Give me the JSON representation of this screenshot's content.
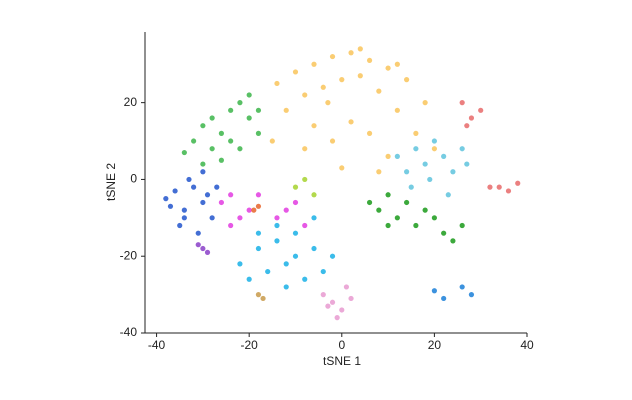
{
  "chart_data": {
    "type": "scatter",
    "xlabel": "tSNE 1",
    "ylabel": "tSNE 2",
    "xlim": [
      -42.5,
      40
    ],
    "ylim": [
      -40,
      38.4
    ],
    "xticks": [
      -40,
      -20,
      0,
      20,
      40
    ],
    "yticks": [
      -40,
      -20,
      0,
      20
    ],
    "grid": false,
    "series": [
      {
        "color": "#f9c45a",
        "x": [
          -14,
          -10,
          -6,
          -2,
          2,
          6,
          10,
          14,
          18,
          -12,
          -8,
          -4,
          0,
          4,
          8,
          12,
          16,
          20,
          -6,
          -2,
          2,
          6,
          10,
          -8,
          0,
          8,
          -3,
          4,
          12,
          -15
        ],
        "y": [
          25,
          28,
          30,
          32,
          33,
          31,
          29,
          26,
          20,
          18,
          22,
          24,
          26,
          27,
          23,
          18,
          12,
          8,
          14,
          10,
          15,
          12,
          6,
          8,
          3,
          2,
          20,
          34,
          30,
          10
        ]
      },
      {
        "color": "#3cb54a",
        "x": [
          -32,
          -30,
          -28,
          -26,
          -24,
          -22,
          -20,
          -18,
          -34,
          -28,
          -24,
          -20,
          -26,
          -22,
          -30,
          -18
        ],
        "y": [
          10,
          14,
          16,
          12,
          18,
          20,
          16,
          12,
          7,
          8,
          10,
          22,
          5,
          8,
          4,
          18
        ]
      },
      {
        "color": "#2255cc",
        "x": [
          -38,
          -36,
          -34,
          -32,
          -30,
          -28,
          -35,
          -31,
          -29,
          -33,
          -37,
          -27,
          -30,
          -34
        ],
        "y": [
          -5,
          -3,
          -8,
          -2,
          -6,
          -10,
          -12,
          -14,
          -4,
          0,
          -7,
          -2,
          2,
          -10
        ]
      },
      {
        "color": "#19b0e6",
        "x": [
          -22,
          -18,
          -14,
          -10,
          -6,
          -2,
          -20,
          -16,
          -12,
          -8,
          -4,
          -14,
          -10,
          -18,
          -6,
          -12
        ],
        "y": [
          -22,
          -18,
          -16,
          -14,
          -18,
          -20,
          -26,
          -24,
          -22,
          -26,
          -24,
          -12,
          -20,
          -14,
          -10,
          -28
        ]
      },
      {
        "color": "#5ec3dd",
        "x": [
          12,
          14,
          16,
          18,
          20,
          22,
          24,
          26,
          15,
          19,
          23,
          27
        ],
        "y": [
          6,
          2,
          8,
          4,
          10,
          6,
          2,
          8,
          -2,
          0,
          -4,
          4
        ]
      },
      {
        "color": "#1a9a1a",
        "x": [
          6,
          8,
          10,
          12,
          14,
          16,
          20,
          22,
          24,
          26,
          18,
          10
        ],
        "y": [
          -6,
          -8,
          -4,
          -10,
          -6,
          -12,
          -10,
          -14,
          -16,
          -12,
          -8,
          -12
        ]
      },
      {
        "color": "#e23be0",
        "x": [
          -26,
          -24,
          -22,
          -20,
          -12,
          -10,
          -8,
          -14,
          -24,
          -18
        ],
        "y": [
          -6,
          -4,
          -10,
          -8,
          -8,
          -6,
          -12,
          -10,
          -12,
          -4
        ]
      },
      {
        "color": "#8a3fc8",
        "x": [
          -30,
          -29,
          -31
        ],
        "y": [
          -18,
          -19,
          -17
        ]
      },
      {
        "color": "#e89ad0",
        "x": [
          -4,
          -2,
          0,
          2,
          -1,
          1,
          -3
        ],
        "y": [
          -30,
          -32,
          -34,
          -31,
          -36,
          -28,
          -33
        ]
      },
      {
        "color": "#e86a6a",
        "x": [
          26,
          28,
          30,
          27,
          34,
          36,
          38,
          32
        ],
        "y": [
          20,
          16,
          18,
          14,
          -2,
          -3,
          -1,
          -2
        ]
      },
      {
        "color": "#1a7fd8",
        "x": [
          20,
          22,
          26,
          28
        ],
        "y": [
          -29,
          -31,
          -28,
          -30
        ]
      },
      {
        "color": "#c89a4a",
        "x": [
          -18,
          -17
        ],
        "y": [
          -30,
          -31
        ]
      },
      {
        "color": "#a6d22e",
        "x": [
          -10,
          -8,
          -6
        ],
        "y": [
          -2,
          0,
          -4
        ]
      },
      {
        "color": "#e8642a",
        "x": [
          -19,
          -18
        ],
        "y": [
          -8,
          -7
        ]
      }
    ]
  }
}
